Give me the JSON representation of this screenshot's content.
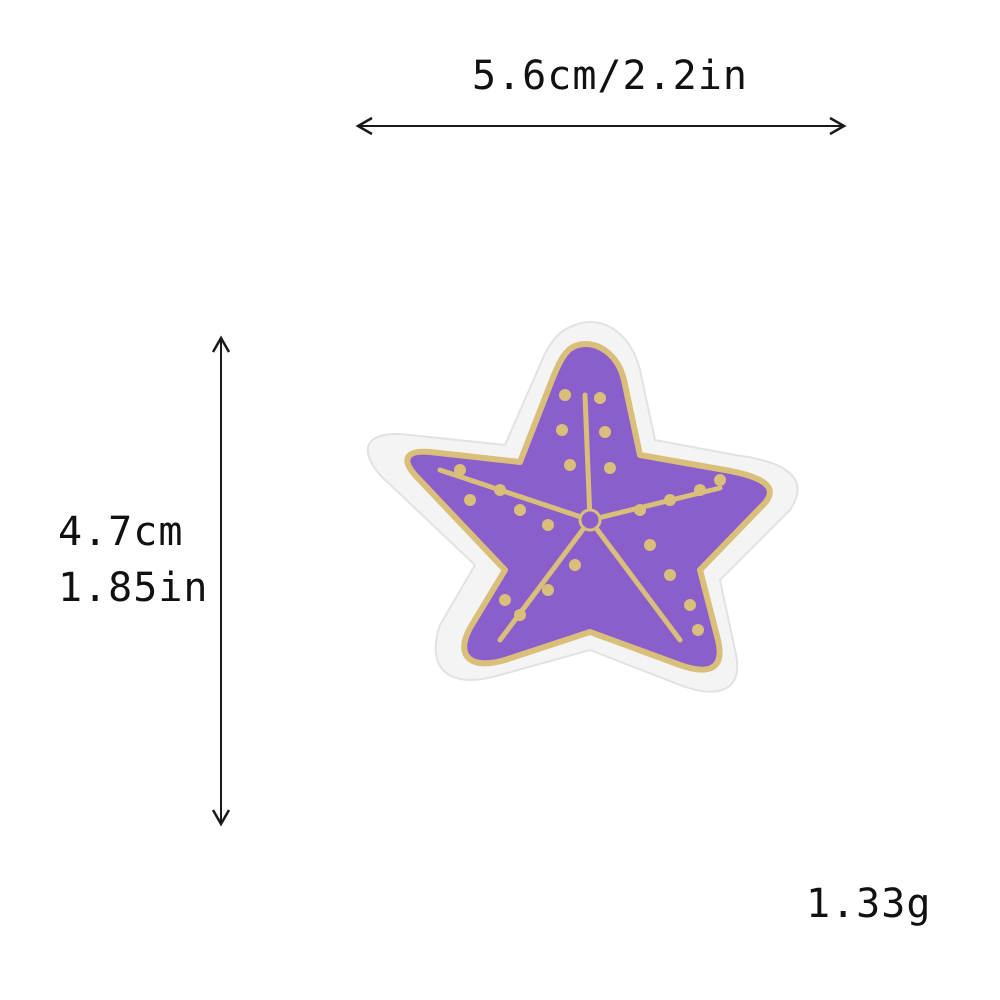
{
  "dimensions": {
    "width_label": "5.6cm/2.2in",
    "height_cm_label": "4.7cm",
    "height_in_label": "1.85in",
    "weight_label": "1.33g"
  },
  "patch": {
    "subject": "starfish embroidered patch",
    "colors": {
      "fill": "#8a5fcc",
      "outline": "#d9bf7a",
      "backing": "#f4f4f4",
      "backing_edge": "#e2e2e2"
    }
  },
  "arrow_color": "#1a1a1a"
}
